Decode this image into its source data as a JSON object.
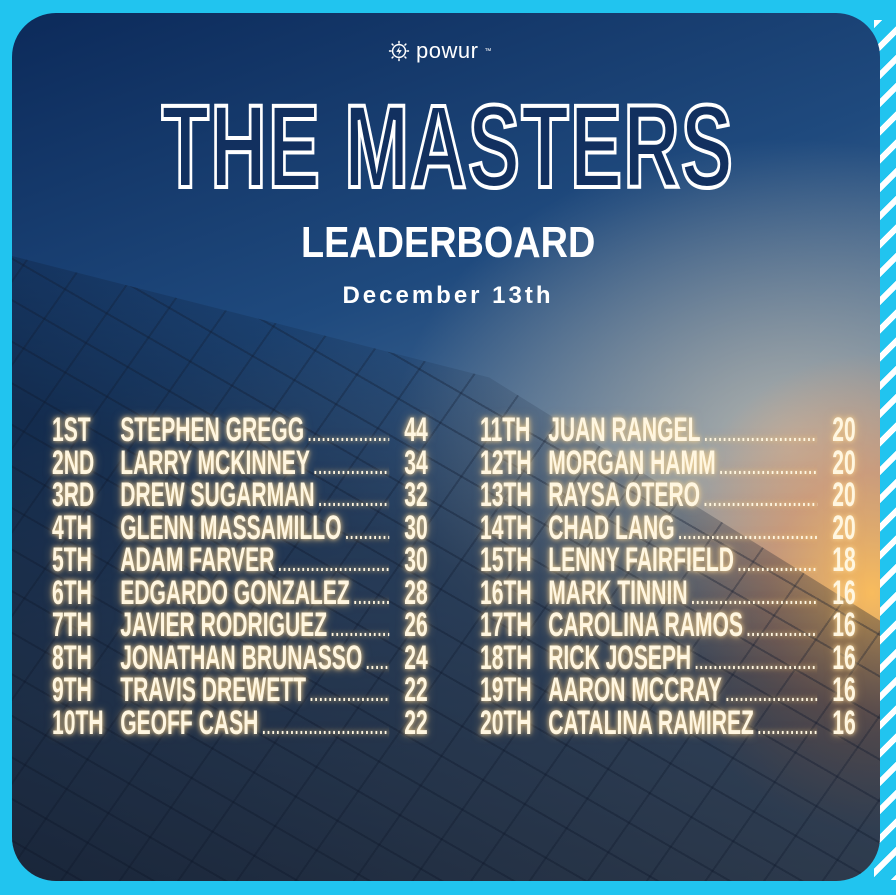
{
  "brand": {
    "name": "powur",
    "tm": "™"
  },
  "title": "THE MASTERS",
  "subtitle": "LEADERBOARD",
  "date": "December 13th",
  "colors": {
    "border": "#21c4ef",
    "text_glow": "#fff6e0",
    "background_top": "#0c2a5a"
  },
  "leaderboard": {
    "left": [
      {
        "rank": "1ST",
        "name": "STEPHEN GREGG",
        "score": "44"
      },
      {
        "rank": "2ND",
        "name": "LARRY MCKINNEY",
        "score": "34"
      },
      {
        "rank": "3RD",
        "name": "DREW SUGARMAN",
        "score": "32"
      },
      {
        "rank": "4TH",
        "name": "GLENN MASSAMILLO",
        "score": "30"
      },
      {
        "rank": "5TH",
        "name": "ADAM FARVER",
        "score": "30"
      },
      {
        "rank": "6TH",
        "name": "EDGARDO GONZALEZ",
        "score": "28"
      },
      {
        "rank": "7TH",
        "name": "JAVIER RODRIGUEZ",
        "score": "26"
      },
      {
        "rank": "8TH",
        "name": "JONATHAN BRUNASSO",
        "score": "24"
      },
      {
        "rank": "9TH",
        "name": "TRAVIS DREWETT",
        "score": "22"
      },
      {
        "rank": "10TH",
        "name": "GEOFF CASH",
        "score": "22"
      }
    ],
    "right": [
      {
        "rank": "11TH",
        "name": "JUAN RANGEL",
        "score": "20"
      },
      {
        "rank": "12TH",
        "name": "MORGAN HAMM",
        "score": "20"
      },
      {
        "rank": "13TH",
        "name": "RAYSA OTERO",
        "score": "20"
      },
      {
        "rank": "14TH",
        "name": "CHAD LANG",
        "score": "20"
      },
      {
        "rank": "15TH",
        "name": "LENNY FAIRFIELD",
        "score": "18"
      },
      {
        "rank": "16TH",
        "name": "MARK TINNIN",
        "score": "16"
      },
      {
        "rank": "17TH",
        "name": "CAROLINA RAMOS",
        "score": "16"
      },
      {
        "rank": "18TH",
        "name": "RICK JOSEPH",
        "score": "16"
      },
      {
        "rank": "19TH",
        "name": "AARON MCCRAY",
        "score": "16"
      },
      {
        "rank": "20TH",
        "name": "CATALINA RAMIREZ",
        "score": "16"
      }
    ]
  }
}
